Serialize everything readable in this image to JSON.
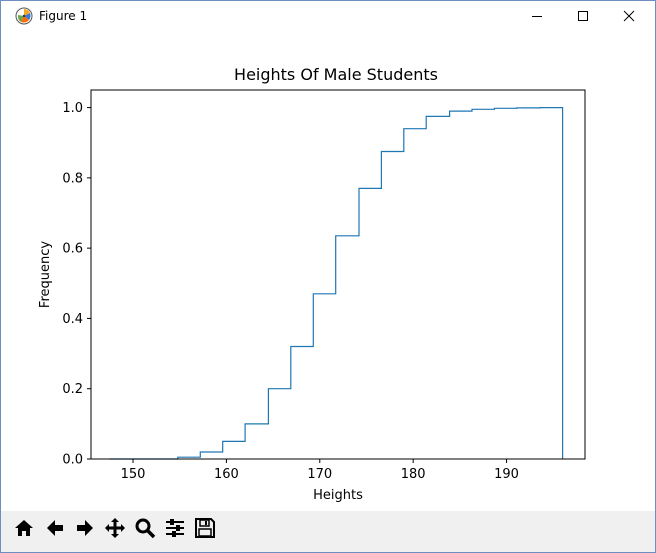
{
  "window": {
    "title": "Figure 1",
    "icons": [
      "matplotlib-logo-icon",
      "minimize-icon",
      "maximize-icon",
      "close-icon"
    ]
  },
  "toolbar": {
    "buttons": [
      {
        "name": "home-button",
        "icon": "home-icon"
      },
      {
        "name": "back-button",
        "icon": "back-arrow-icon"
      },
      {
        "name": "forward-button",
        "icon": "forward-arrow-icon"
      },
      {
        "name": "pan-button",
        "icon": "pan-arrows-icon"
      },
      {
        "name": "zoom-button",
        "icon": "magnifier-icon"
      },
      {
        "name": "configure-subplots-button",
        "icon": "sliders-icon"
      },
      {
        "name": "save-button",
        "icon": "save-disk-icon"
      }
    ]
  },
  "chart_data": {
    "type": "step",
    "title": "Heights Of Male Students",
    "xlabel": "Heights",
    "ylabel": "Frequency",
    "xlim": [
      145.5,
      198.4
    ],
    "ylim": [
      0,
      1.05
    ],
    "xticks": [
      150,
      160,
      170,
      180,
      190
    ],
    "yticks": [
      0.0,
      0.2,
      0.4,
      0.6,
      0.8,
      1.0
    ],
    "xtick_labels": [
      "150",
      "160",
      "170",
      "180",
      "190"
    ],
    "ytick_labels": [
      "0.0",
      "0.2",
      "0.4",
      "0.6",
      "0.8",
      "1.0"
    ],
    "cumulative": true,
    "histtype": "step",
    "bin_edges": [
      147.5,
      149.9,
      152.3,
      154.8,
      157.2,
      159.6,
      162.0,
      164.5,
      166.9,
      169.3,
      171.7,
      174.2,
      176.6,
      179.0,
      181.4,
      183.9,
      186.3,
      188.7,
      191.1,
      193.6,
      196.0
    ],
    "values": [
      0.0,
      0.0,
      0.0,
      0.005,
      0.02,
      0.05,
      0.1,
      0.2,
      0.32,
      0.47,
      0.635,
      0.77,
      0.875,
      0.94,
      0.975,
      0.99,
      0.995,
      0.998,
      0.999,
      1.0
    ],
    "line_color": "#1f77b4",
    "grid": false
  }
}
